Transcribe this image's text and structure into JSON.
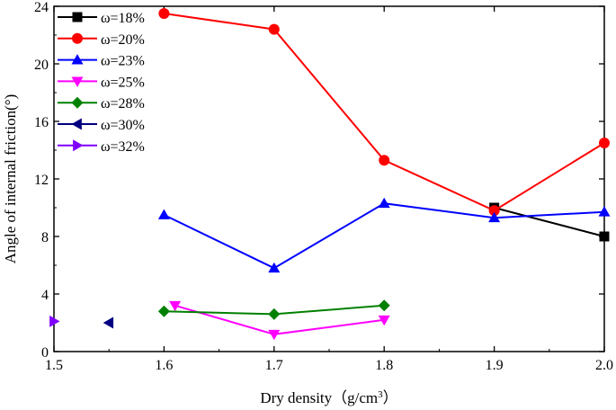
{
  "chart_data": {
    "type": "line",
    "title": "",
    "xlabel": "Dry density（g/cm",
    "xlabel_sup": "3",
    "xlabel_end": "）",
    "ylabel": "Angle of internal friction(°)",
    "xlim": [
      1.5,
      2.0
    ],
    "ylim": [
      0,
      24
    ],
    "xticks": [
      "1.5",
      "1.6",
      "1.7",
      "1.8",
      "1.9",
      "2.0"
    ],
    "yticks": [
      "0",
      "4",
      "8",
      "12",
      "16",
      "20",
      "24"
    ],
    "grid": false,
    "legend_position": "top-left",
    "series": [
      {
        "name": "ω=18%",
        "color": "#000000",
        "marker": "square",
        "x": [
          1.9,
          2.0
        ],
        "y": [
          10.0,
          8.0
        ]
      },
      {
        "name": "ω=20%",
        "color": "#ff0000",
        "marker": "circle",
        "x": [
          1.6,
          1.7,
          1.8,
          1.9,
          2.0
        ],
        "y": [
          23.5,
          22.4,
          13.3,
          9.8,
          14.5
        ]
      },
      {
        "name": "ω=23%",
        "color": "#0000ff",
        "marker": "triangle-up",
        "x": [
          1.6,
          1.7,
          1.8,
          1.9,
          2.0
        ],
        "y": [
          9.5,
          5.8,
          10.3,
          9.3,
          9.7
        ]
      },
      {
        "name": "ω=25%",
        "color": "#ff00ff",
        "marker": "triangle-down",
        "x": [
          1.61,
          1.7,
          1.8
        ],
        "y": [
          3.2,
          1.2,
          2.2
        ]
      },
      {
        "name": "ω=28%",
        "color": "#008000",
        "marker": "diamond",
        "x": [
          1.6,
          1.7,
          1.8
        ],
        "y": [
          2.8,
          2.6,
          3.2
        ]
      },
      {
        "name": "ω=30%",
        "color": "#000080",
        "marker": "triangle-left",
        "x": [
          1.55
        ],
        "y": [
          2.0
        ]
      },
      {
        "name": "ω=32%",
        "color": "#8000ff",
        "marker": "triangle-right",
        "x": [
          1.5
        ],
        "y": [
          2.1
        ]
      }
    ]
  }
}
